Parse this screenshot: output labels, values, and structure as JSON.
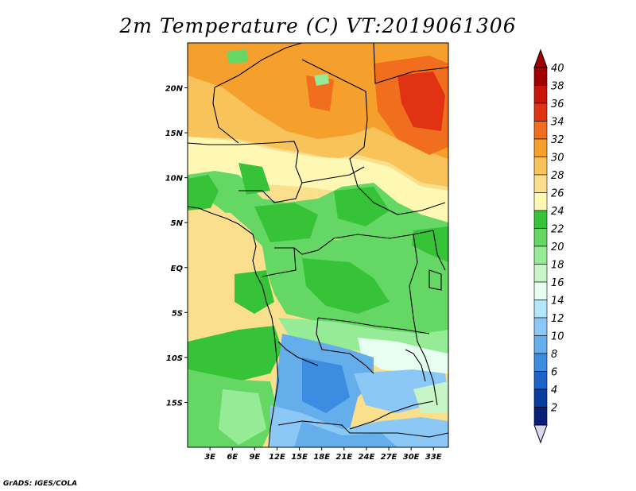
{
  "title": "2m Temperature (C) VT:2019061306",
  "credit": "GrADS: IGES/COLA",
  "map": {
    "lon_range": [
      0,
      35
    ],
    "lat_range": [
      -20,
      25
    ],
    "lat_ticks": [
      {
        "value": 20,
        "label": "20N"
      },
      {
        "value": 15,
        "label": "15N"
      },
      {
        "value": 10,
        "label": "10N"
      },
      {
        "value": 5,
        "label": "5N"
      },
      {
        "value": 0,
        "label": "EQ"
      },
      {
        "value": -5,
        "label": "5S"
      },
      {
        "value": -10,
        "label": "10S"
      },
      {
        "value": -15,
        "label": "15S"
      }
    ],
    "lon_ticks": [
      {
        "value": 3,
        "label": "3E"
      },
      {
        "value": 6,
        "label": "6E"
      },
      {
        "value": 9,
        "label": "9E"
      },
      {
        "value": 12,
        "label": "12E"
      },
      {
        "value": 15,
        "label": "15E"
      },
      {
        "value": 18,
        "label": "18E"
      },
      {
        "value": 21,
        "label": "21E"
      },
      {
        "value": 24,
        "label": "24E"
      },
      {
        "value": 27,
        "label": "27E"
      },
      {
        "value": 30,
        "label": "30E"
      },
      {
        "value": 33,
        "label": "33E"
      }
    ]
  },
  "colorbar": {
    "labels": [
      "40",
      "38",
      "36",
      "34",
      "32",
      "30",
      "28",
      "26",
      "24",
      "22",
      "20",
      "18",
      "16",
      "14",
      "12",
      "10",
      "8",
      "6",
      "4",
      "2"
    ],
    "colors": [
      "#a00000",
      "#c8140a",
      "#e13214",
      "#f06e1e",
      "#f5a02d",
      "#f8c35a",
      "#fae08c",
      "#fff8b4",
      "#37c337",
      "#64d764",
      "#96ec96",
      "#c8f5c8",
      "#e6fff0",
      "#b4e6fa",
      "#8cc8f5",
      "#64afeb",
      "#3c8ce1",
      "#1e64c8",
      "#0a3ca0",
      "#081e78"
    ],
    "top_arrow_color": "#a00000",
    "bottom_arrow_color": "#d8d8f0"
  }
}
